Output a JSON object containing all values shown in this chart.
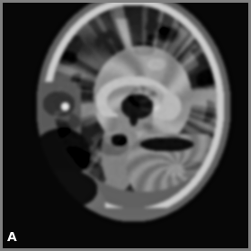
{
  "label": "A",
  "label_fontsize": 10,
  "label_color": "white",
  "label_fontweight": "bold",
  "figsize": [
    2.79,
    2.79
  ],
  "dpi": 100,
  "background_color": "#000000",
  "img_border_gray": 0.5
}
